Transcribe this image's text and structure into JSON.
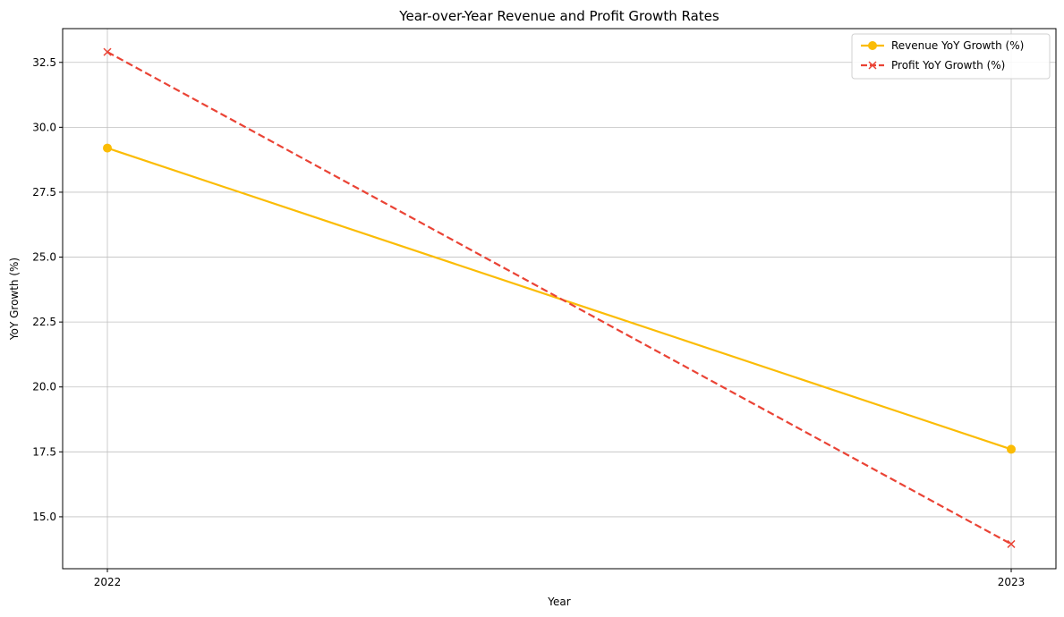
{
  "chart_data": {
    "type": "line",
    "title": "Year-over-Year Revenue and Profit Growth Rates",
    "xlabel": "Year",
    "ylabel": "YoY Growth (%)",
    "categories": [
      "2022",
      "2023"
    ],
    "ylim": [
      13.0,
      33.8
    ],
    "yticks": [
      15.0,
      17.5,
      20.0,
      22.5,
      25.0,
      27.5,
      30.0,
      32.5
    ],
    "ytick_labels": [
      "15.0",
      "17.5",
      "20.0",
      "22.5",
      "25.0",
      "27.5",
      "30.0",
      "32.5"
    ],
    "grid": true,
    "legend_position": "top-right",
    "series": [
      {
        "name": "Revenue YoY Growth (%)",
        "values": [
          29.2,
          17.6
        ],
        "color": "#fbbc05",
        "line_style": "solid",
        "marker": "circle"
      },
      {
        "name": "Profit YoY Growth (%)",
        "values": [
          32.9,
          13.95
        ],
        "color": "#ea4335",
        "line_style": "dashed",
        "marker": "x"
      }
    ]
  }
}
